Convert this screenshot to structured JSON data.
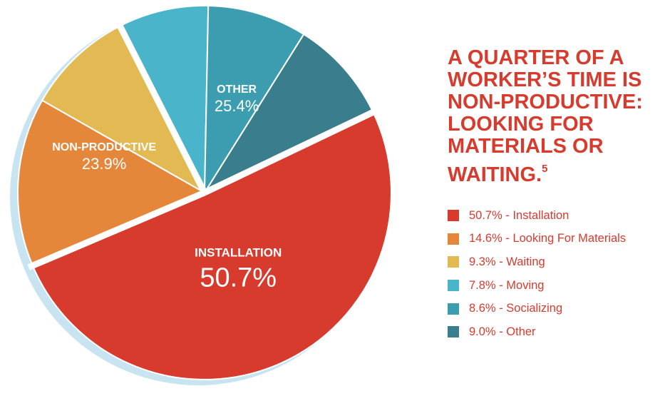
{
  "headline": {
    "text": "A QUARTER OF A WORKER’S TIME IS NON-PRODUCTIVE: LOOKING FOR MATERIALS OR WAITING.",
    "footnote": "5"
  },
  "chart_data": {
    "type": "pie",
    "categories": [
      "Installation",
      "Looking For Materials",
      "Waiting",
      "Moving",
      "Socializing",
      "Other"
    ],
    "values": [
      50.7,
      14.6,
      9.3,
      7.8,
      8.6,
      9.0
    ],
    "colors": [
      "#d63b2e",
      "#e5873a",
      "#e2b952",
      "#4ab4cb",
      "#3c9db1",
      "#3a7d8c"
    ],
    "start_angle_deg": 64.5,
    "direction": "clockwise",
    "groups": [
      {
        "label": "INSTALLATION",
        "value": "50.7%",
        "slices": [
          0
        ]
      },
      {
        "label": "NON-PRODUCTIVE",
        "value": "23.9%",
        "slices": [
          1,
          2
        ]
      },
      {
        "label": "OTHER",
        "value": "25.4%",
        "slices": [
          3,
          4,
          5
        ]
      }
    ],
    "legend": {
      "placement": "right",
      "entries": [
        {
          "label": "50.7% - Installation",
          "color": "#d63b2e"
        },
        {
          "label": "14.6% - Looking For Materials",
          "color": "#e5873a"
        },
        {
          "label": "9.3% - Waiting",
          "color": "#e2b952"
        },
        {
          "label": "7.8% - Moving",
          "color": "#4ab4cb"
        },
        {
          "label": "8.6% - Socializing",
          "color": "#3c9db1"
        },
        {
          "label": "9.0% - Other",
          "color": "#3a7d8c"
        }
      ]
    },
    "shadow_color": "#c8e4f1"
  }
}
